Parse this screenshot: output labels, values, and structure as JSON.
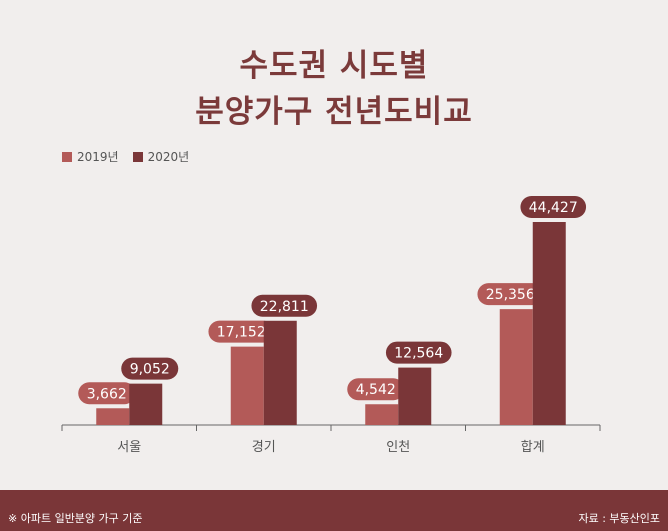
{
  "title_line1": "수도권 시도별",
  "title_line2": "분양가구 전년도비교",
  "legend": {
    "s1": "2019년",
    "s2": "2020년"
  },
  "colors": {
    "s1": "#b35a58",
    "s2": "#7a3638",
    "label_bg1": "#b35a58",
    "label_bg2": "#7a3638"
  },
  "footer": {
    "note": "※ 아파트 일반분양 가구 기준",
    "source": "자료 : 부동산인포"
  },
  "chart_data": {
    "type": "bar",
    "categories": [
      "서울",
      "경기",
      "인천",
      "합계"
    ],
    "series": [
      {
        "name": "2019년",
        "values": [
          3662,
          17152,
          4542,
          25356
        ],
        "labels": [
          "3,662",
          "17,152",
          "4,542",
          "25,356"
        ]
      },
      {
        "name": "2020년",
        "values": [
          9052,
          22811,
          12564,
          44427
        ],
        "labels": [
          "9,052",
          "22,811",
          "12,564",
          "44,427"
        ]
      }
    ],
    "ylim": [
      0,
      50000
    ],
    "grid": false,
    "legend_position": "top-left"
  }
}
